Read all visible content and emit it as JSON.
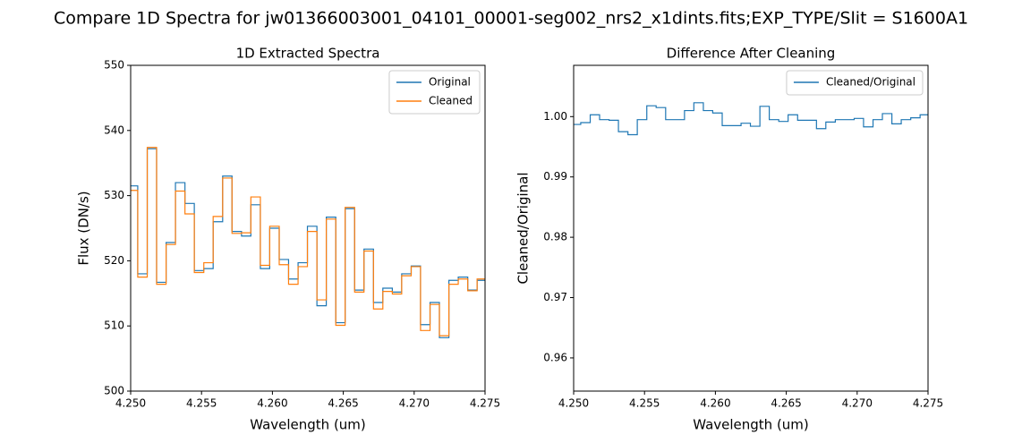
{
  "figure_title": "Compare 1D Spectra for jw01366003001_04101_00001-seg002_nrs2_x1dints.fits;EXP_TYPE/Slit = S1600A1",
  "chart_data": [
    {
      "type": "step",
      "title": "1D Extracted Spectra",
      "xlabel": "Wavelength (um)",
      "ylabel": "Flux (DN/s)",
      "x": [
        4.25,
        4.2505,
        4.25117,
        4.25183,
        4.2525,
        4.25316,
        4.25383,
        4.25449,
        4.25516,
        4.25582,
        4.25649,
        4.25715,
        4.25782,
        4.25848,
        4.25915,
        4.25981,
        4.26048,
        4.26114,
        4.26181,
        4.26247,
        4.26314,
        4.2638,
        4.26447,
        4.26513,
        4.2658,
        4.26646,
        4.26713,
        4.26779,
        4.26846,
        4.26912,
        4.26979,
        4.27045,
        4.27112,
        4.27178,
        4.27245,
        4.27311,
        4.27378,
        4.27444
      ],
      "series": [
        {
          "name": "Original",
          "color": "#1f77b4",
          "values": [
            531.5,
            518,
            537.2,
            516.7,
            522.8,
            532,
            528.8,
            518.5,
            518.8,
            526,
            533,
            524.5,
            523.8,
            528.6,
            518.8,
            525,
            520.2,
            517.2,
            519.7,
            525.3,
            513.1,
            526.7,
            510.5,
            528,
            515.5,
            521.8,
            513.6,
            515.8,
            515.2,
            518,
            519.2,
            510.2,
            513.6,
            508.2,
            517,
            517.5,
            515.5,
            517
          ]
        },
        {
          "name": "Cleaned",
          "color": "#ff7f0e",
          "values": [
            530.8,
            517.5,
            537.4,
            516.4,
            522.5,
            530.7,
            527.2,
            518.2,
            519.7,
            526.8,
            532.7,
            524.2,
            524.3,
            529.8,
            519.3,
            525.3,
            519.4,
            516.4,
            519.1,
            524.5,
            514,
            526.4,
            510.1,
            528.2,
            515.2,
            521.5,
            512.6,
            515.3,
            514.9,
            517.7,
            519.1,
            509.3,
            513.3,
            508.5,
            516.4,
            517.2,
            515.4,
            517.2
          ]
        }
      ],
      "xlim": [
        4.25,
        4.275
      ],
      "xticks": [
        {
          "value": 4.25,
          "label": "4.250"
        },
        {
          "value": 4.255,
          "label": "4.255"
        },
        {
          "value": 4.26,
          "label": "4.260"
        },
        {
          "value": 4.265,
          "label": "4.265"
        },
        {
          "value": 4.27,
          "label": "4.270"
        },
        {
          "value": 4.275,
          "label": "4.275"
        }
      ],
      "ylim": [
        500,
        550
      ],
      "yticks": [
        500,
        510,
        520,
        530,
        540,
        550
      ],
      "legend": "upper right"
    },
    {
      "type": "step",
      "title": "Difference After Cleaning",
      "xlabel": "Wavelength (um)",
      "ylabel": "Cleaned/Original",
      "x": [
        4.25,
        4.2505,
        4.25117,
        4.25183,
        4.2525,
        4.25316,
        4.25383,
        4.25449,
        4.25516,
        4.25582,
        4.25649,
        4.25715,
        4.25782,
        4.25848,
        4.25915,
        4.25981,
        4.26048,
        4.26114,
        4.26181,
        4.26247,
        4.26314,
        4.2638,
        4.26447,
        4.26513,
        4.2658,
        4.26646,
        4.26713,
        4.26779,
        4.26846,
        4.26912,
        4.26979,
        4.27045,
        4.27112,
        4.27178,
        4.27245,
        4.27311,
        4.27378,
        4.27444
      ],
      "series": [
        {
          "name": "Cleaned/Original",
          "color": "#1f77b4",
          "values": [
            0.9987,
            0.999,
            1.0003,
            0.9995,
            0.9994,
            0.9975,
            0.997,
            0.9995,
            1.0018,
            1.0015,
            0.9995,
            0.9995,
            1.001,
            1.0023,
            1.001,
            1.0006,
            0.9985,
            0.9985,
            0.9989,
            0.9984,
            1.0017,
            0.9995,
            0.9992,
            1.0003,
            0.9994,
            0.9994,
            0.998,
            0.9991,
            0.9995,
            0.9995,
            0.9997,
            0.9983,
            0.9995,
            1.0005,
            0.9988,
            0.9995,
            0.9998,
            1.0003
          ]
        }
      ],
      "xlim": [
        4.25,
        4.275
      ],
      "xticks": [
        {
          "value": 4.25,
          "label": "4.250"
        },
        {
          "value": 4.255,
          "label": "4.255"
        },
        {
          "value": 4.26,
          "label": "4.260"
        },
        {
          "value": 4.265,
          "label": "4.265"
        },
        {
          "value": 4.27,
          "label": "4.270"
        },
        {
          "value": 4.275,
          "label": "4.275"
        }
      ],
      "ylim": [
        0.9545,
        1.0085
      ],
      "yticks": [
        0.96,
        0.97,
        0.98,
        0.99,
        {
          "value": 1,
          "label": "1.00"
        }
      ],
      "legend": "upper right"
    }
  ]
}
